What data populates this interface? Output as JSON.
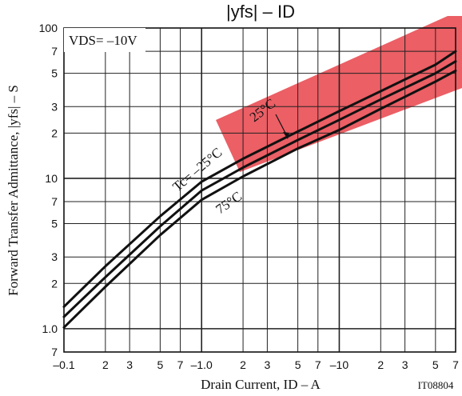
{
  "chart_data": {
    "type": "line",
    "title": "|yfs| – ID",
    "xlabel": "Drain Current, ID – A",
    "ylabel": "Forward Transfer Admittance, |yfs| – S",
    "x_scale": "log",
    "y_scale": "log",
    "xlim": [
      0.1,
      70
    ],
    "ylim": [
      0.7,
      100
    ],
    "x_tick_labels": [
      {
        "v": 0.1,
        "t": "–0.1"
      },
      {
        "v": 0.2,
        "t": "2"
      },
      {
        "v": 0.3,
        "t": "3"
      },
      {
        "v": 0.5,
        "t": "5"
      },
      {
        "v": 0.7,
        "t": "7"
      },
      {
        "v": 1,
        "t": "–1.0"
      },
      {
        "v": 2,
        "t": "2"
      },
      {
        "v": 3,
        "t": "3"
      },
      {
        "v": 5,
        "t": "5"
      },
      {
        "v": 7,
        "t": "7"
      },
      {
        "v": 10,
        "t": "–10"
      },
      {
        "v": 20,
        "t": "2"
      },
      {
        "v": 30,
        "t": "3"
      },
      {
        "v": 50,
        "t": "5"
      },
      {
        "v": 70,
        "t": "7"
      }
    ],
    "y_tick_labels": [
      {
        "v": 100,
        "t": "100"
      },
      {
        "v": 70,
        "t": "7"
      },
      {
        "v": 50,
        "t": "5"
      },
      {
        "v": 30,
        "t": "3"
      },
      {
        "v": 20,
        "t": "2"
      },
      {
        "v": 10,
        "t": "10"
      },
      {
        "v": 7,
        "t": "7"
      },
      {
        "v": 5,
        "t": "5"
      },
      {
        "v": 3,
        "t": "3"
      },
      {
        "v": 2,
        "t": "2"
      },
      {
        "v": 1,
        "t": "1.0"
      },
      {
        "v": 0.7,
        "t": "7"
      }
    ],
    "grid": true,
    "series": [
      {
        "name": "Tc= –25°C",
        "x": [
          0.1,
          0.2,
          0.5,
          1,
          2,
          5,
          10,
          20,
          50,
          70
        ],
        "y": [
          1.4,
          2.6,
          5.6,
          9.5,
          13.5,
          20.5,
          28.0,
          38.0,
          57.0,
          70.0
        ]
      },
      {
        "name": "25°C",
        "x": [
          0.1,
          0.2,
          0.5,
          1,
          2,
          5,
          10,
          20,
          50,
          70
        ],
        "y": [
          1.2,
          2.2,
          4.8,
          8.3,
          11.8,
          18.0,
          24.5,
          33.5,
          50.0,
          60.0
        ]
      },
      {
        "name": "75°C",
        "x": [
          0.1,
          0.2,
          0.5,
          1,
          2,
          5,
          10,
          20,
          50,
          70
        ],
        "y": [
          1.02,
          1.9,
          4.2,
          7.2,
          10.3,
          15.8,
          21.0,
          29.0,
          44.0,
          52.0
        ]
      }
    ],
    "annotations": {
      "condition": "VDS= –10V",
      "code": "IT08804"
    }
  }
}
